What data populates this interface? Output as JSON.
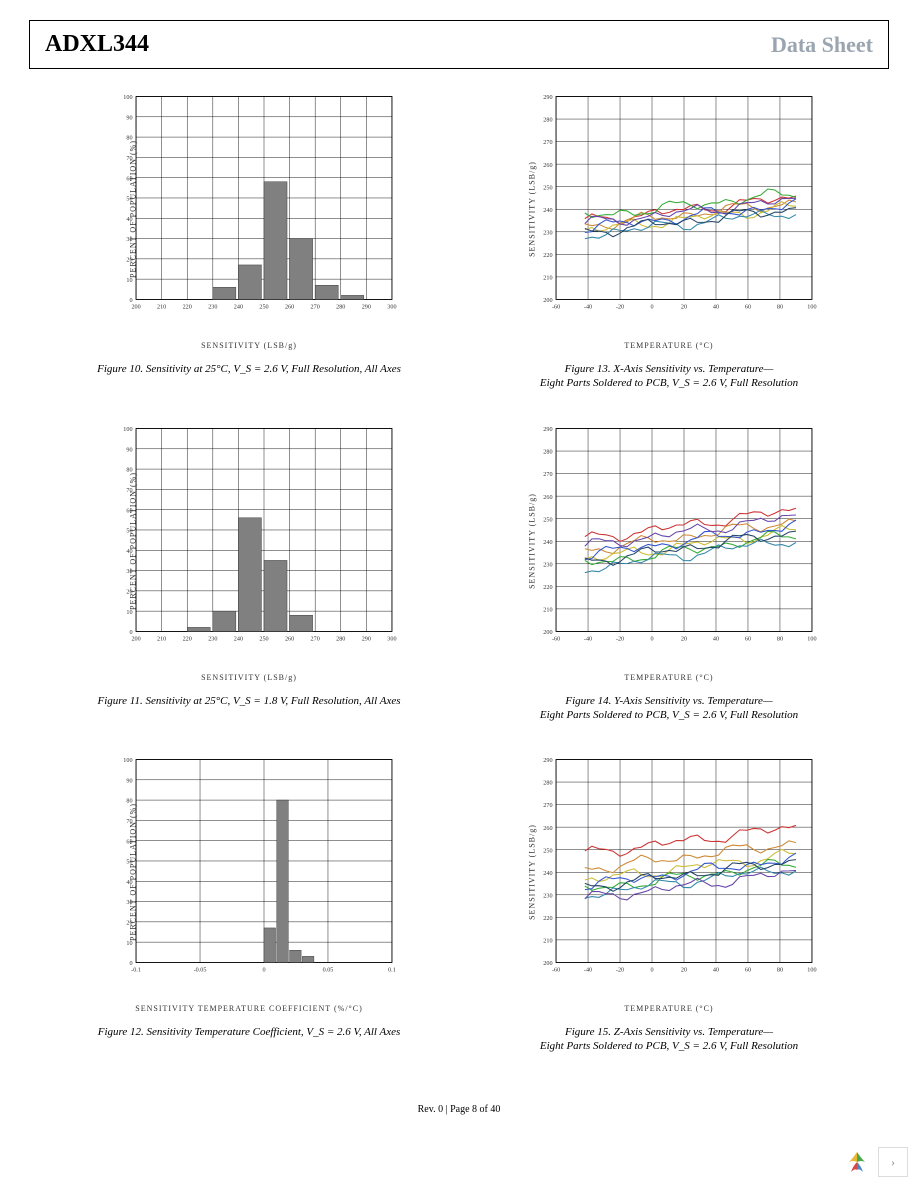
{
  "header": {
    "part": "ADXL344",
    "doc_type": "Data Sheet"
  },
  "footer": "Rev. 0 | Page 8 of 40",
  "figures": {
    "fig10": {
      "type": "histogram",
      "ylabel": "PERCENT OF POPULATION (%)",
      "xlabel": "SENSITIVITY (LSB/g)",
      "caption": "Figure 10. Sensitivity at 25°C, V_S = 2.6 V, Full Resolution, All Axes",
      "xlim": [
        200,
        300
      ],
      "xtick_step": 10,
      "ylim": [
        0,
        100
      ],
      "ytick_step": 10,
      "bar_color": "#808080",
      "bins": [
        220,
        230,
        240,
        250,
        260,
        270,
        280
      ],
      "values": [
        0,
        6,
        17,
        58,
        30,
        7,
        2
      ]
    },
    "fig11": {
      "type": "histogram",
      "ylabel": "PERCENT OF POPULATION (%)",
      "xlabel": "SENSITIVITY (LSB/g)",
      "caption": "Figure 11. Sensitivity at 25°C, V_S = 1.8 V, Full Resolution, All Axes",
      "xlim": [
        200,
        300
      ],
      "xtick_step": 10,
      "ylim": [
        0,
        100
      ],
      "ytick_step": 10,
      "bar_color": "#808080",
      "bins": [
        220,
        230,
        240,
        250,
        260
      ],
      "values": [
        2,
        10,
        56,
        35,
        8
      ]
    },
    "fig12": {
      "type": "histogram",
      "ylabel": "PERCENT OF POPULATION (%)",
      "xlabel": "SENSITIVITY TEMPERATURE COEFFICIENT (%/°C)",
      "caption": "Figure 12. Sensitivity Temperature Coefficient, V_S = 2.6 V, All Axes",
      "xlim": [
        -0.1,
        0.1
      ],
      "xticks": [
        -0.1,
        -0.05,
        0,
        0.05,
        0.1
      ],
      "ylim": [
        0,
        100
      ],
      "ytick_step": 10,
      "bar_color": "#808080",
      "bins_scaled": [
        0.0,
        0.01,
        0.02,
        0.03
      ],
      "values": [
        17,
        80,
        6,
        3
      ]
    },
    "fig13": {
      "type": "line",
      "ylabel": "SENSITIVITY (LSB/g)",
      "xlabel": "TEMPERATURE (°C)",
      "caption_l1": "Figure 13. X-Axis Sensitivity vs. Temperature—",
      "caption_l2": "Eight Parts Soldered to PCB, V_S = 2.6 V, Full Resolution",
      "xlim": [
        -60,
        100
      ],
      "xtick_step": 20,
      "ylim": [
        200,
        290
      ],
      "ytick_step": 10,
      "colors": [
        "#cc3333",
        "#cc8833",
        "#ccbb33",
        "#33aa33",
        "#3388aa",
        "#3355cc",
        "#6644aa",
        "#224466"
      ],
      "base": [
        238,
        236,
        234,
        240,
        232,
        235,
        237,
        233
      ],
      "slope": 0.08
    },
    "fig14": {
      "type": "line",
      "ylabel": "SENSITIVITY (LSB/g)",
      "xlabel": "TEMPERATURE (°C)",
      "caption_l1": "Figure 14. Y-Axis Sensitivity vs. Temperature—",
      "caption_l2": "Eight Parts Soldered to PCB, V_S = 2.6 V, Full Resolution",
      "xlim": [
        -60,
        100
      ],
      "xtick_step": 20,
      "ylim": [
        200,
        290
      ],
      "ytick_step": 10,
      "colors": [
        "#cc3333",
        "#cc8833",
        "#ccbb33",
        "#33aa33",
        "#3388aa",
        "#3355cc",
        "#6644aa",
        "#224466"
      ],
      "base": [
        245,
        240,
        236,
        234,
        232,
        238,
        242,
        235
      ],
      "slope": 0.1
    },
    "fig15": {
      "type": "line",
      "ylabel": "SENSITIVITY (LSB/g)",
      "xlabel": "TEMPERATURE (°C)",
      "caption_l1": "Figure 15. Z-Axis Sensitivity vs. Temperature—",
      "caption_l2": "Eight Parts Soldered to PCB, V_S = 2.6 V, Full Resolution",
      "xlim": [
        -60,
        100
      ],
      "xtick_step": 20,
      "ylim": [
        200,
        290
      ],
      "ytick_step": 10,
      "colors": [
        "#cc3333",
        "#cc8833",
        "#ccbb33",
        "#33aa33",
        "#3388aa",
        "#3355cc",
        "#6644aa",
        "#224466"
      ],
      "base": [
        252,
        245,
        240,
        236,
        234,
        238,
        232,
        237
      ],
      "slope": 0.09
    }
  }
}
